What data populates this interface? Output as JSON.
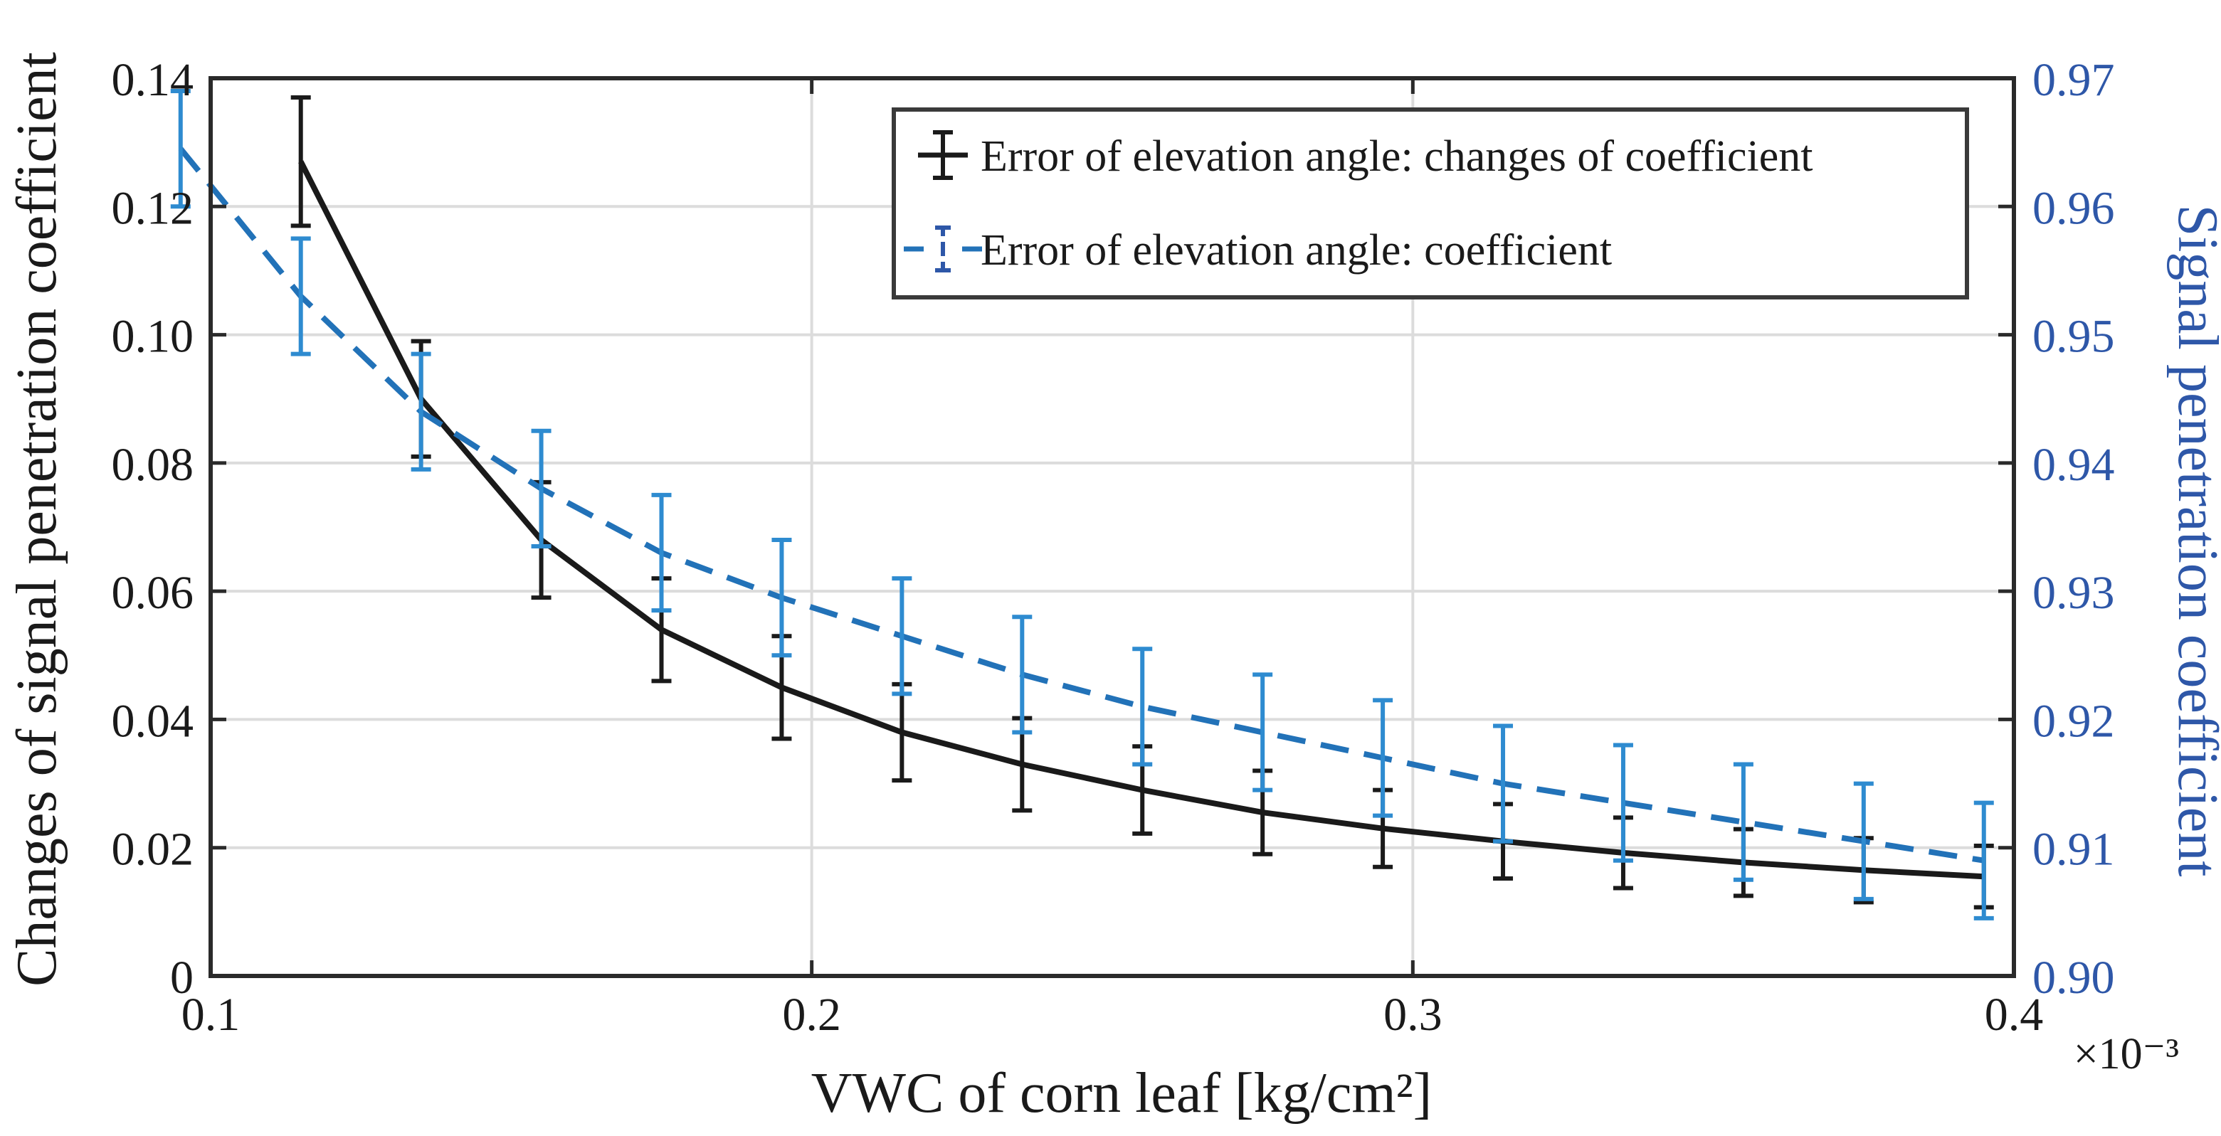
{
  "chart_data": {
    "type": "line",
    "title": "",
    "xlabel": "VWC of corn leaf [kg/cm²]",
    "x_multiplier_label": "×10⁻³",
    "ylabel_left": "Changes of signal penetration coefficient",
    "ylabel_right": "Signal penetration coefficient",
    "xlim": [
      0.1,
      0.4
    ],
    "ylim_left": [
      0,
      0.14
    ],
    "ylim_right": [
      0.9,
      0.97
    ],
    "x_ticks": [
      0.1,
      0.2,
      0.3,
      0.4
    ],
    "x_tick_labels": [
      "0.1",
      "0.2",
      "0.3",
      "0.4"
    ],
    "y_left_ticks": [
      0,
      0.02,
      0.04,
      0.06,
      0.08,
      0.1,
      0.12,
      0.14
    ],
    "y_left_tick_labels": [
      "0",
      "0.02",
      "0.04",
      "0.06",
      "0.08",
      "0.10",
      "0.12",
      "0.14"
    ],
    "y_right_ticks": [
      0.9,
      0.91,
      0.92,
      0.93,
      0.94,
      0.95,
      0.96,
      0.97
    ],
    "y_right_tick_labels": [
      "0.90",
      "0.91",
      "0.92",
      "0.93",
      "0.94",
      "0.95",
      "0.96",
      "0.97"
    ],
    "grid": true,
    "legend_position": "top-right",
    "series": [
      {
        "name": "Error of elevation angle: changes of coefficient",
        "axis": "left",
        "color": "#1a1a1a",
        "line_style": "solid",
        "x": [
          0.115,
          0.135,
          0.155,
          0.175,
          0.195,
          0.215,
          0.235,
          0.255,
          0.275,
          0.295,
          0.315,
          0.335,
          0.355,
          0.375,
          0.395
        ],
        "y": [
          0.127,
          0.09,
          0.068,
          0.054,
          0.045,
          0.038,
          0.033,
          0.029,
          0.0255,
          0.023,
          0.021,
          0.0192,
          0.0177,
          0.0165,
          0.0155
        ],
        "err": [
          0.01,
          0.009,
          0.009,
          0.008,
          0.008,
          0.0075,
          0.0072,
          0.0068,
          0.0065,
          0.006,
          0.0058,
          0.0055,
          0.0052,
          0.005,
          0.0048
        ]
      },
      {
        "name": "Error of elevation angle: coefficient",
        "axis": "right",
        "color": "#2272b8",
        "line_style": "dashed",
        "x": [
          0.095,
          0.115,
          0.135,
          0.155,
          0.175,
          0.195,
          0.215,
          0.235,
          0.255,
          0.275,
          0.295,
          0.315,
          0.335,
          0.355,
          0.375,
          0.395
        ],
        "y": [
          0.9645,
          0.953,
          0.944,
          0.938,
          0.933,
          0.9295,
          0.9265,
          0.9235,
          0.921,
          0.919,
          0.917,
          0.915,
          0.9135,
          0.912,
          0.9105,
          0.909
        ],
        "err": [
          0.0045,
          0.0045,
          0.0045,
          0.0045,
          0.0045,
          0.0045,
          0.0045,
          0.0045,
          0.0045,
          0.0045,
          0.0045,
          0.0045,
          0.0045,
          0.0045,
          0.0045,
          0.0045
        ]
      }
    ]
  }
}
